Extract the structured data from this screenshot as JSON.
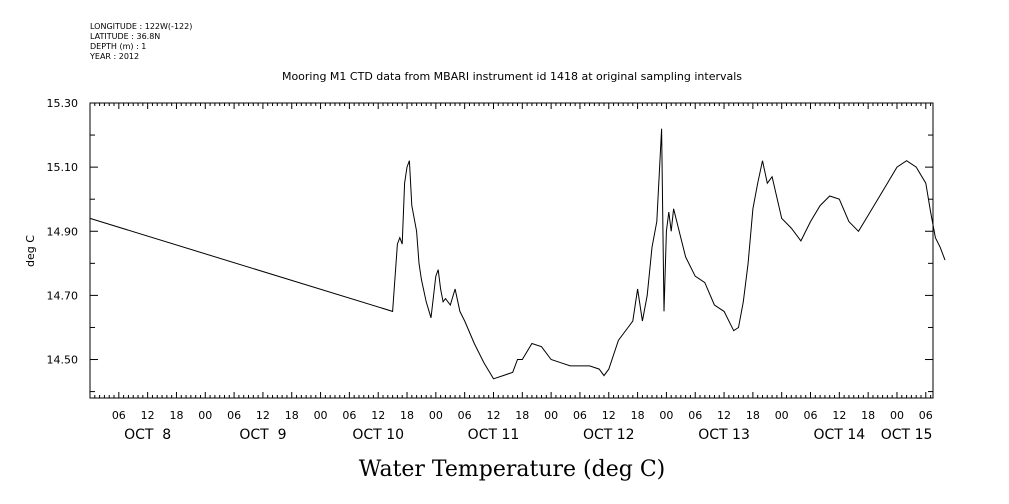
{
  "meta": {
    "longitude": "LONGITUDE : 122W(-122)",
    "latitude": "LATITUDE : 36.8N",
    "depth": "DEPTH (m) : 1",
    "year": "YEAR : 2012"
  },
  "chart_data": {
    "type": "line",
    "title": "Mooring M1 CTD data from MBARI instrument id 1418 at original sampling intervals",
    "xlabel": "Water Temperature (deg C)",
    "ylabel": "deg C",
    "ylim": [
      14.38,
      15.3
    ],
    "yticks": [
      "14.50",
      "14.70",
      "14.90",
      "15.10",
      "15.30"
    ],
    "xlim_hours": [
      0,
      175.5
    ],
    "hour_ticks": [
      "06",
      "12",
      "18",
      "00",
      "06",
      "12",
      "18",
      "00",
      "06",
      "12",
      "18",
      "00",
      "06",
      "12",
      "18",
      "00",
      "06",
      "12",
      "18",
      "00",
      "06",
      "12",
      "18",
      "00",
      "06",
      "12",
      "18",
      "00",
      "06"
    ],
    "day_labels": [
      "OCT  8",
      "OCT  9",
      "OCT 10",
      "OCT 11",
      "OCT 12",
      "OCT 13",
      "OCT 14",
      "OCT 15"
    ],
    "grid": false,
    "series": [
      {
        "x": [
          "10/8 00:00",
          "10/10 15:00",
          "10/10 16:00",
          "10/10 16:30",
          "10/10 17:00",
          "10/10 17:30",
          "10/10 18:00",
          "10/10 18:30",
          "10/10 19:00",
          "10/10 20:00",
          "10/10 20:30",
          "10/10 21:00",
          "10/10 22:00",
          "10/10 23:00",
          "10/11 00:00",
          "10/11 00:30",
          "10/11 01:00",
          "10/11 01:30",
          "10/11 02:00",
          "10/11 03:00",
          "10/11 04:00",
          "10/11 05:00",
          "10/11 06:00",
          "10/11 08:00",
          "10/11 10:00",
          "10/11 12:00",
          "10/11 14:00",
          "10/11 16:00",
          "10/11 17:00",
          "10/11 18:00",
          "10/11 20:00",
          "10/11 22:00",
          "10/12 00:00",
          "10/12 02:00",
          "10/12 04:00",
          "10/12 06:00",
          "10/12 08:00",
          "10/12 10:00",
          "10/12 11:00",
          "10/12 12:00",
          "10/12 14:00",
          "10/12 16:00",
          "10/12 17:00",
          "10/12 18:00",
          "10/12 19:00",
          "10/12 20:00",
          "10/12 21:00",
          "10/12 22:00",
          "10/12 23:00",
          "10/12 23:30",
          "10/13 00:00",
          "10/13 00:30",
          "10/13 01:00",
          "10/13 01:30",
          "10/13 02:00",
          "10/13 03:00",
          "10/13 04:00",
          "10/13 06:00",
          "10/13 08:00",
          "10/13 10:00",
          "10/13 12:00",
          "10/13 14:00",
          "10/13 15:00",
          "10/13 16:00",
          "10/13 17:00",
          "10/13 18:00",
          "10/13 19:00",
          "10/13 20:00",
          "10/13 21:00",
          "10/13 22:00",
          "10/14 00:00",
          "10/14 02:00",
          "10/14 04:00",
          "10/14 06:00",
          "10/14 08:00",
          "10/14 10:00",
          "10/14 12:00",
          "10/14 14:00",
          "10/14 16:00",
          "10/14 18:00",
          "10/14 20:00",
          "10/14 22:00",
          "10/15 00:00",
          "10/15 02:00",
          "10/15 04:00",
          "10/15 06:00",
          "10/15 07:00",
          "10/15 08:00",
          "10/15 09:00",
          "10/15 10:00"
        ],
        "values": [
          14.94,
          14.65,
          14.86,
          14.88,
          14.86,
          15.05,
          15.1,
          15.12,
          14.98,
          14.9,
          14.8,
          14.75,
          14.68,
          14.63,
          14.76,
          14.78,
          14.72,
          14.68,
          14.69,
          14.67,
          14.72,
          14.65,
          14.62,
          14.55,
          14.49,
          14.44,
          14.45,
          14.46,
          14.5,
          14.5,
          14.55,
          14.54,
          14.5,
          14.49,
          14.48,
          14.48,
          14.48,
          14.47,
          14.45,
          14.47,
          14.56,
          14.6,
          14.62,
          14.72,
          14.62,
          14.7,
          14.85,
          14.93,
          15.22,
          14.65,
          14.9,
          14.96,
          14.9,
          14.97,
          14.94,
          14.88,
          14.82,
          14.76,
          14.74,
          14.67,
          14.65,
          14.59,
          14.6,
          14.68,
          14.8,
          14.97,
          15.05,
          15.12,
          15.05,
          15.07,
          14.94,
          14.91,
          14.87,
          14.93,
          14.98,
          15.01,
          15.0,
          14.93,
          14.9,
          14.95,
          15.0,
          15.05,
          15.1,
          15.12,
          15.1,
          15.05,
          14.96,
          14.88,
          14.85,
          14.81
        ]
      }
    ]
  }
}
